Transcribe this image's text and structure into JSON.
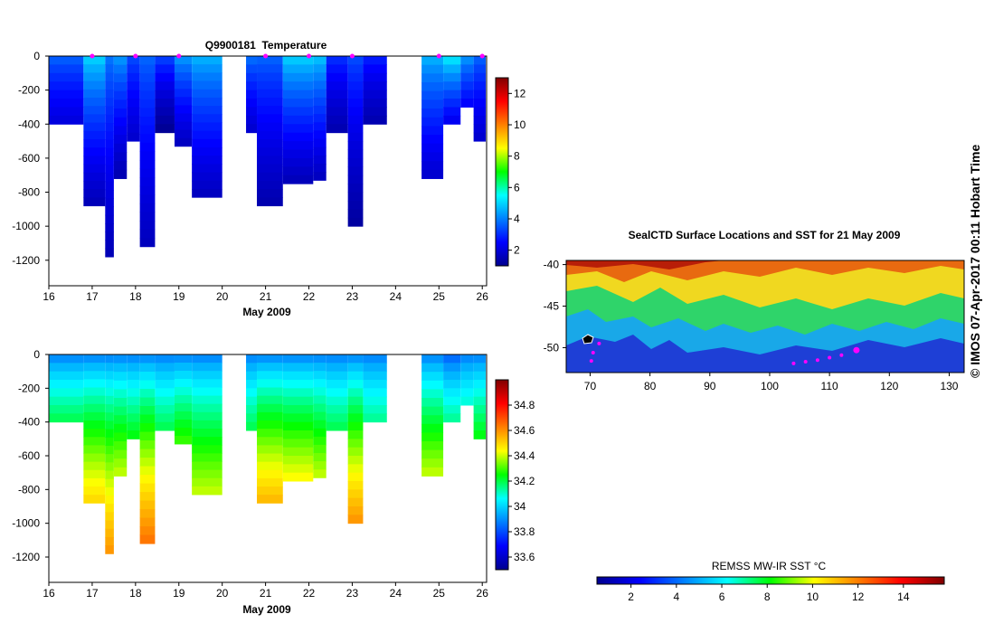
{
  "chart_data": [
    {
      "type": "heatmap",
      "title": "Q9900181  Temperature",
      "xlabel": "May 2009",
      "ylabel": "",
      "xlim": [
        16,
        26.1
      ],
      "ylim": [
        -1350,
        0
      ],
      "x_ticks": [
        16,
        17,
        18,
        19,
        20,
        21,
        22,
        23,
        24,
        25,
        26
      ],
      "y_ticks": [
        0,
        -200,
        -400,
        -600,
        -800,
        -1000,
        -1200
      ],
      "colorbar": {
        "min": 1,
        "max": 13,
        "ticks": [
          2,
          4,
          6,
          8,
          10,
          12
        ]
      },
      "markers_at_surface": [
        17,
        18,
        19,
        21,
        22,
        23,
        25,
        26
      ],
      "profiles": [
        {
          "x0": 16.0,
          "x1": 16.8,
          "depth": 400,
          "top": 3.8,
          "bottom": 2.0
        },
        {
          "x0": 16.8,
          "x1": 17.3,
          "depth": 880,
          "top": 5.2,
          "bottom": 1.5
        },
        {
          "x0": 17.3,
          "x1": 17.5,
          "depth": 1180,
          "top": 4.0,
          "bottom": 1.5
        },
        {
          "x0": 17.5,
          "x1": 17.8,
          "depth": 720,
          "top": 4.5,
          "bottom": 1.4
        },
        {
          "x0": 17.8,
          "x1": 18.1,
          "depth": 500,
          "top": 3.5,
          "bottom": 1.8
        },
        {
          "x0": 18.1,
          "x1": 18.45,
          "depth": 1120,
          "top": 3.8,
          "bottom": 1.6
        },
        {
          "x0": 18.45,
          "x1": 18.9,
          "depth": 450,
          "top": 3.5,
          "bottom": 1.0
        },
        {
          "x0": 18.9,
          "x1": 19.3,
          "depth": 530,
          "top": 4.5,
          "bottom": 1.6
        },
        {
          "x0": 19.3,
          "x1": 20.0,
          "depth": 830,
          "top": 4.8,
          "bottom": 1.6
        },
        {
          "x0": 20.55,
          "x1": 20.8,
          "depth": 450,
          "top": 4.0,
          "bottom": 1.8
        },
        {
          "x0": 20.8,
          "x1": 21.4,
          "depth": 880,
          "top": 3.8,
          "bottom": 1.4
        },
        {
          "x0": 21.4,
          "x1": 22.1,
          "depth": 750,
          "top": 5.2,
          "bottom": 1.5
        },
        {
          "x0": 22.1,
          "x1": 22.4,
          "depth": 730,
          "top": 5.0,
          "bottom": 1.6
        },
        {
          "x0": 22.4,
          "x1": 22.9,
          "depth": 450,
          "top": 3.2,
          "bottom": 1.4
        },
        {
          "x0": 22.9,
          "x1": 23.25,
          "depth": 1000,
          "top": 3.5,
          "bottom": 1.2
        },
        {
          "x0": 23.25,
          "x1": 23.8,
          "depth": 400,
          "top": 3.0,
          "bottom": 1.4
        },
        {
          "x0": 24.6,
          "x1": 25.1,
          "depth": 720,
          "top": 4.8,
          "bottom": 1.8
        },
        {
          "x0": 25.1,
          "x1": 25.5,
          "depth": 400,
          "top": 5.6,
          "bottom": 2.2
        },
        {
          "x0": 25.5,
          "x1": 25.8,
          "depth": 300,
          "top": 4.5,
          "bottom": 2.4
        },
        {
          "x0": 25.8,
          "x1": 26.08,
          "depth": 500,
          "top": 3.8,
          "bottom": 1.8
        }
      ]
    },
    {
      "type": "heatmap",
      "title": "",
      "xlabel": "May 2009",
      "ylabel": "",
      "xlim": [
        16,
        26.1
      ],
      "ylim": [
        -1350,
        0
      ],
      "x_ticks": [
        16,
        17,
        18,
        19,
        20,
        21,
        22,
        23,
        24,
        25,
        26
      ],
      "y_ticks": [
        0,
        -200,
        -400,
        -600,
        -800,
        -1000,
        -1200
      ],
      "colorbar": {
        "min": 33.5,
        "max": 35.0,
        "ticks": [
          33.6,
          33.8,
          34,
          34.2,
          34.4,
          34.6,
          34.8
        ]
      },
      "profiles": [
        {
          "x0": 16.0,
          "x1": 16.8,
          "depth": 400,
          "top": 33.85,
          "bottom": 34.2
        },
        {
          "x0": 16.8,
          "x1": 17.3,
          "depth": 880,
          "top": 33.85,
          "bottom": 34.5
        },
        {
          "x0": 17.3,
          "x1": 17.5,
          "depth": 1180,
          "top": 33.85,
          "bottom": 34.6
        },
        {
          "x0": 17.5,
          "x1": 17.8,
          "depth": 720,
          "top": 33.85,
          "bottom": 34.4
        },
        {
          "x0": 17.8,
          "x1": 18.1,
          "depth": 500,
          "top": 33.85,
          "bottom": 34.25
        },
        {
          "x0": 18.1,
          "x1": 18.45,
          "depth": 1120,
          "top": 33.85,
          "bottom": 34.65
        },
        {
          "x0": 18.45,
          "x1": 18.9,
          "depth": 450,
          "top": 33.85,
          "bottom": 34.2
        },
        {
          "x0": 18.9,
          "x1": 19.3,
          "depth": 530,
          "top": 33.85,
          "bottom": 34.3
        },
        {
          "x0": 19.3,
          "x1": 20.0,
          "depth": 830,
          "top": 33.85,
          "bottom": 34.4
        },
        {
          "x0": 20.55,
          "x1": 20.8,
          "depth": 450,
          "top": 33.85,
          "bottom": 34.2
        },
        {
          "x0": 20.8,
          "x1": 21.4,
          "depth": 880,
          "top": 33.85,
          "bottom": 34.55
        },
        {
          "x0": 21.4,
          "x1": 22.1,
          "depth": 750,
          "top": 33.85,
          "bottom": 34.45
        },
        {
          "x0": 22.1,
          "x1": 22.4,
          "depth": 730,
          "top": 33.85,
          "bottom": 34.4
        },
        {
          "x0": 22.4,
          "x1": 22.9,
          "depth": 450,
          "top": 33.85,
          "bottom": 34.2
        },
        {
          "x0": 22.9,
          "x1": 23.25,
          "depth": 1000,
          "top": 33.85,
          "bottom": 34.6
        },
        {
          "x0": 23.25,
          "x1": 23.8,
          "depth": 400,
          "top": 33.85,
          "bottom": 34.15
        },
        {
          "x0": 24.6,
          "x1": 25.1,
          "depth": 720,
          "top": 33.85,
          "bottom": 34.4
        },
        {
          "x0": 25.1,
          "x1": 25.5,
          "depth": 400,
          "top": 33.8,
          "bottom": 34.15
        },
        {
          "x0": 25.5,
          "x1": 25.8,
          "depth": 300,
          "top": 33.85,
          "bottom": 34.1
        },
        {
          "x0": 25.8,
          "x1": 26.08,
          "depth": 500,
          "top": 33.85,
          "bottom": 34.25
        }
      ]
    },
    {
      "type": "heatmap",
      "title": "SealCTD Surface Locations and SST for 21 May 2009",
      "xlabel": "",
      "ylabel": "",
      "xlim": [
        66,
        132.5
      ],
      "ylim": [
        -53,
        -39.5
      ],
      "x_ticks": [
        70,
        80,
        90,
        100,
        110,
        120,
        130
      ],
      "y_ticks": [
        -40,
        -45,
        -50
      ],
      "colorbar": {
        "label": "REMSS MW-IR SST °C",
        "min": 0.5,
        "max": 15.8,
        "ticks": [
          2,
          4,
          6,
          8,
          10,
          12,
          14
        ]
      },
      "seal_points": [
        {
          "lon": 114.5,
          "lat": -50.3
        },
        {
          "lon": 112.0,
          "lat": -50.9
        },
        {
          "lon": 110.0,
          "lat": -51.2
        },
        {
          "lon": 108.0,
          "lat": -51.5
        },
        {
          "lon": 106.0,
          "lat": -51.7
        },
        {
          "lon": 104.0,
          "lat": -51.9
        },
        {
          "lon": 71.5,
          "lat": -49.5
        },
        {
          "lon": 70.5,
          "lat": -50.6
        },
        {
          "lon": 70.2,
          "lat": -51.6
        }
      ],
      "footer_text": "© IMOS 07-Apr-2017 00:11 Hobart Time"
    }
  ]
}
